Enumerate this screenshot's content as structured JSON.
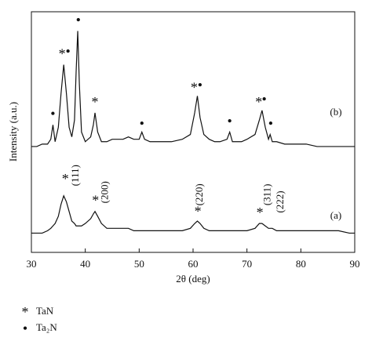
{
  "chart_data": {
    "type": "line",
    "xlabel": "2θ (deg)",
    "ylabel": "Intensity (a.u.)",
    "xlim": [
      30,
      90
    ],
    "xticks": [
      30,
      40,
      50,
      60,
      70,
      80,
      90
    ],
    "ylim": [
      0,
      100
    ],
    "x": [
      30,
      31,
      32,
      33,
      33.6,
      34,
      34.4,
      35,
      35.5,
      36,
      36.5,
      37,
      37.5,
      38,
      38.3,
      38.6,
      38.9,
      39.3,
      40,
      41,
      41.5,
      41.8,
      42.3,
      43,
      44,
      45,
      46,
      47,
      48,
      49,
      50,
      50.5,
      51,
      52,
      54,
      56,
      58,
      59.5,
      60.3,
      60.8,
      61.3,
      62,
      63,
      64,
      65,
      66.3,
      66.8,
      67.3,
      68,
      69,
      70,
      71.5,
      72.3,
      72.8,
      73.4,
      74,
      74.3,
      74.7,
      75.5,
      77,
      79,
      81,
      83,
      85,
      87,
      89,
      90
    ],
    "series": [
      {
        "color": "#111111",
        "values": [
          44,
          44,
          45,
          45,
          47,
          53,
          46,
          52,
          66,
          78,
          66,
          52,
          48,
          55,
          75,
          92,
          70,
          50,
          46,
          48,
          53,
          58,
          50,
          46,
          46,
          47,
          47,
          47,
          48,
          47,
          47,
          50,
          47,
          46,
          46,
          46,
          47,
          49,
          58,
          65,
          56,
          49,
          47,
          46,
          46,
          47,
          50,
          46,
          46,
          46,
          47,
          49,
          55,
          59,
          52,
          47,
          49,
          46,
          46,
          45,
          45,
          45,
          44,
          44,
          44,
          44,
          44
        ]
      },
      {
        "color": "#111111",
        "values": [
          8,
          8,
          8,
          9,
          10,
          11,
          12,
          15,
          20,
          23.5,
          21,
          17,
          13,
          12,
          11,
          11,
          11,
          11,
          12,
          14,
          16,
          17,
          15,
          12,
          10,
          10,
          10,
          10,
          10,
          9,
          9,
          9,
          9,
          9,
          9,
          9,
          9,
          10,
          12,
          13,
          12,
          10,
          9,
          9,
          9,
          9,
          9,
          9,
          9,
          9,
          9,
          10,
          12,
          12,
          11,
          10,
          10,
          10,
          9,
          9,
          9,
          9,
          9,
          9,
          9,
          8,
          8
        ]
      }
    ],
    "annotations": [
      {
        "text": "*",
        "x": 35.7,
        "y": 82
      },
      {
        "text": "•",
        "x": 36.8,
        "y": 83
      },
      {
        "text": "•",
        "x": 34,
        "y": 57
      },
      {
        "text": "•",
        "x": 38.7,
        "y": 96
      },
      {
        "text": "*",
        "x": 41.8,
        "y": 62
      },
      {
        "text": "•",
        "x": 50.5,
        "y": 53
      },
      {
        "text": "*",
        "x": 60.2,
        "y": 68
      },
      {
        "text": "•",
        "x": 61.3,
        "y": 69
      },
      {
        "text": "•",
        "x": 66.8,
        "y": 54
      },
      {
        "text": "*",
        "x": 72.2,
        "y": 62
      },
      {
        "text": "•",
        "x": 73.2,
        "y": 63
      },
      {
        "text": "•",
        "x": 74.4,
        "y": 53
      },
      {
        "text": "(b)",
        "x": 86.5,
        "y": 58
      },
      {
        "text": "*",
        "x": 36.3,
        "y": 30
      },
      {
        "text": "(111)",
        "x": 38.3,
        "y": 32
      },
      {
        "text": "*",
        "x": 41.9,
        "y": 21
      },
      {
        "text": "(200)",
        "x": 43.8,
        "y": 25
      },
      {
        "text": "*",
        "x": 60.9,
        "y": 16.5
      },
      {
        "text": "(220)",
        "x": 61.3,
        "y": 24
      },
      {
        "text": "*",
        "x": 72.4,
        "y": 16
      },
      {
        "text": "(311)",
        "x": 73.9,
        "y": 24
      },
      {
        "text": "(222)",
        "x": 76.3,
        "y": 21
      },
      {
        "text": "(a)",
        "x": 86.5,
        "y": 15
      }
    ],
    "legend": [
      {
        "symbol": "*",
        "label": "TaN"
      },
      {
        "symbol": "•",
        "label": "Ta₂N"
      }
    ]
  }
}
